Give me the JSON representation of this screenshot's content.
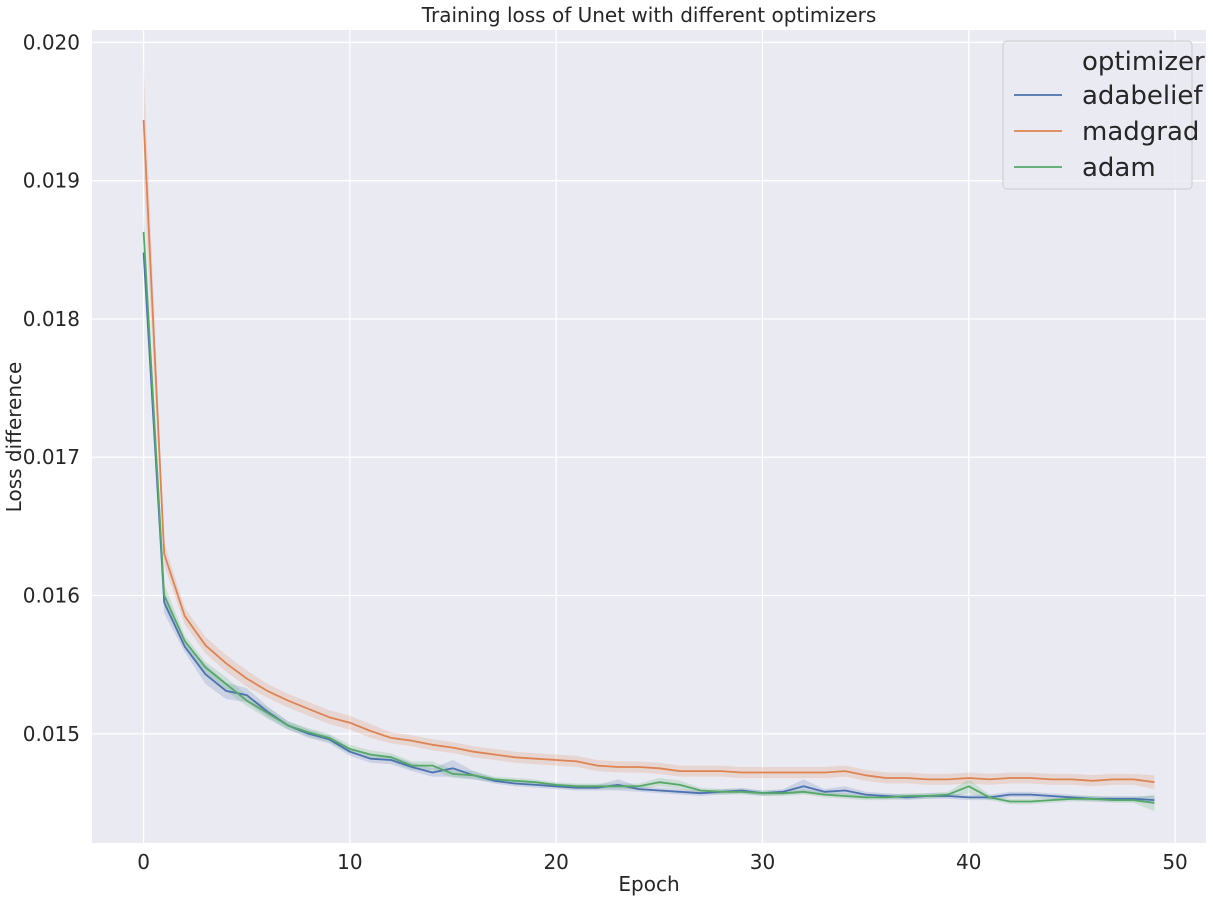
{
  "chart_data": {
    "type": "line",
    "title": "Training loss of Unet with different optimizers",
    "xlabel": "Epoch",
    "ylabel": "Loss difference",
    "xlim": [
      -2.5,
      51.5
    ],
    "ylim": [
      0.01421,
      0.02009
    ],
    "xticks": [
      0,
      10,
      20,
      30,
      40,
      50
    ],
    "yticks": [
      0.015,
      0.016,
      0.017,
      0.018,
      0.019,
      0.02
    ],
    "ytick_labels": [
      "0.015",
      "0.016",
      "0.017",
      "0.018",
      "0.019",
      "0.020"
    ],
    "grid": true,
    "background": "#eaeaf2",
    "legend": {
      "title": "optimizer",
      "placement": "top-right"
    },
    "series": [
      {
        "name": "adabelief",
        "color": "#4c72b0",
        "x": [
          0,
          1,
          2,
          3,
          4,
          5,
          6,
          7,
          8,
          9,
          10,
          11,
          12,
          13,
          14,
          15,
          16,
          17,
          18,
          19,
          20,
          21,
          22,
          23,
          24,
          25,
          26,
          27,
          28,
          29,
          30,
          31,
          32,
          33,
          34,
          35,
          36,
          37,
          38,
          39,
          40,
          41,
          42,
          43,
          44,
          45,
          46,
          47,
          48,
          49
        ],
        "y": [
          0.01848,
          0.01595,
          0.01563,
          0.01543,
          0.01531,
          0.01528,
          0.01516,
          0.01506,
          0.015,
          0.01496,
          0.01487,
          0.01482,
          0.01481,
          0.01476,
          0.01472,
          0.01475,
          0.0147,
          0.01466,
          0.01464,
          0.01463,
          0.01462,
          0.01461,
          0.01461,
          0.01463,
          0.0146,
          0.01459,
          0.01458,
          0.01457,
          0.01458,
          0.01459,
          0.01457,
          0.01458,
          0.01462,
          0.01458,
          0.01459,
          0.01456,
          0.01455,
          0.01454,
          0.01455,
          0.01455,
          0.01454,
          0.01454,
          0.01456,
          0.01456,
          0.01455,
          0.01454,
          0.01453,
          0.01453,
          0.01453,
          0.01452
        ],
        "ci": [
          3e-05,
          8e-05,
          4e-05,
          7e-05,
          6e-05,
          5e-05,
          4e-05,
          3e-05,
          3e-05,
          3e-05,
          3e-05,
          3e-05,
          3e-05,
          3e-05,
          3e-05,
          6e-05,
          3e-05,
          2e-05,
          2e-05,
          2e-05,
          2e-05,
          2e-05,
          2e-05,
          4e-05,
          2e-05,
          2e-05,
          2e-05,
          2e-05,
          2e-05,
          2e-05,
          2e-05,
          2e-05,
          5e-05,
          2e-05,
          3e-05,
          2e-05,
          2e-05,
          2e-05,
          2e-05,
          2e-05,
          2e-05,
          2e-05,
          2e-05,
          2e-05,
          2e-05,
          2e-05,
          2e-05,
          2e-05,
          2e-05,
          3e-05
        ]
      },
      {
        "name": "madgrad",
        "color": "#dd8452",
        "x": [
          0,
          1,
          2,
          3,
          4,
          5,
          6,
          7,
          8,
          9,
          10,
          11,
          12,
          13,
          14,
          15,
          16,
          17,
          18,
          19,
          20,
          21,
          22,
          23,
          24,
          25,
          26,
          27,
          28,
          29,
          30,
          31,
          32,
          33,
          34,
          35,
          36,
          37,
          38,
          39,
          40,
          41,
          42,
          43,
          44,
          45,
          46,
          47,
          48,
          49
        ],
        "y": [
          0.01944,
          0.0163,
          0.01585,
          0.01564,
          0.01551,
          0.0154,
          0.01531,
          0.01524,
          0.01518,
          0.01512,
          0.01508,
          0.01502,
          0.01497,
          0.01495,
          0.01492,
          0.0149,
          0.01487,
          0.01485,
          0.01483,
          0.01482,
          0.01481,
          0.0148,
          0.01477,
          0.01476,
          0.01476,
          0.01475,
          0.01473,
          0.01473,
          0.01473,
          0.01472,
          0.01472,
          0.01472,
          0.01472,
          0.01472,
          0.01473,
          0.0147,
          0.01468,
          0.01468,
          0.01467,
          0.01467,
          0.01468,
          0.01467,
          0.01468,
          0.01468,
          0.01467,
          0.01467,
          0.01466,
          0.01467,
          0.01467,
          0.01465
        ],
        "ci": [
          0.0004,
          8e-05,
          6e-05,
          6e-05,
          6e-05,
          6e-05,
          5e-05,
          5e-05,
          5e-05,
          5e-05,
          5e-05,
          5e-05,
          4e-05,
          4e-05,
          4e-05,
          4e-05,
          4e-05,
          4e-05,
          4e-05,
          4e-05,
          4e-05,
          4e-05,
          4e-05,
          4e-05,
          4e-05,
          4e-05,
          4e-05,
          4e-05,
          4e-05,
          4e-05,
          4e-05,
          4e-05,
          4e-05,
          4e-05,
          4e-05,
          4e-05,
          4e-05,
          4e-05,
          4e-05,
          4e-05,
          4e-05,
          4e-05,
          4e-05,
          4e-05,
          4e-05,
          4e-05,
          4e-05,
          4e-05,
          4e-05,
          5e-05
        ]
      },
      {
        "name": "adam",
        "color": "#55a868",
        "x": [
          0,
          1,
          2,
          3,
          4,
          5,
          6,
          7,
          8,
          9,
          10,
          11,
          12,
          13,
          14,
          15,
          16,
          17,
          18,
          19,
          20,
          21,
          22,
          23,
          24,
          25,
          26,
          27,
          28,
          29,
          30,
          31,
          32,
          33,
          34,
          35,
          36,
          37,
          38,
          39,
          40,
          41,
          42,
          43,
          44,
          45,
          46,
          47,
          48,
          49
        ],
        "y": [
          0.01863,
          0.016,
          0.01567,
          0.01548,
          0.01536,
          0.01524,
          0.01515,
          0.01506,
          0.01501,
          0.01497,
          0.01489,
          0.01485,
          0.01483,
          0.01477,
          0.01477,
          0.01471,
          0.0147,
          0.01467,
          0.01466,
          0.01465,
          0.01463,
          0.01462,
          0.01462,
          0.01462,
          0.01462,
          0.01465,
          0.01463,
          0.01459,
          0.01458,
          0.01458,
          0.01457,
          0.01457,
          0.01458,
          0.01456,
          0.01455,
          0.01454,
          0.01454,
          0.01455,
          0.01455,
          0.01456,
          0.01462,
          0.01454,
          0.01451,
          0.01451,
          0.01452,
          0.01453,
          0.01453,
          0.01452,
          0.01452,
          0.0145
        ],
        "ci": [
          0.00015,
          8e-05,
          4e-05,
          4e-05,
          5e-05,
          4e-05,
          4e-05,
          3e-05,
          3e-05,
          3e-05,
          3e-05,
          3e-05,
          3e-05,
          3e-05,
          3e-05,
          3e-05,
          3e-05,
          2e-05,
          2e-05,
          2e-05,
          2e-05,
          2e-05,
          2e-05,
          2e-05,
          2e-05,
          3e-05,
          3e-05,
          2e-05,
          2e-05,
          2e-05,
          2e-05,
          2e-05,
          2e-05,
          2e-05,
          2e-05,
          2e-05,
          2e-05,
          2e-05,
          2e-05,
          2e-05,
          5e-05,
          2e-05,
          2e-05,
          2e-05,
          2e-05,
          2e-05,
          2e-05,
          2e-05,
          2e-05,
          6e-05
        ]
      }
    ]
  }
}
